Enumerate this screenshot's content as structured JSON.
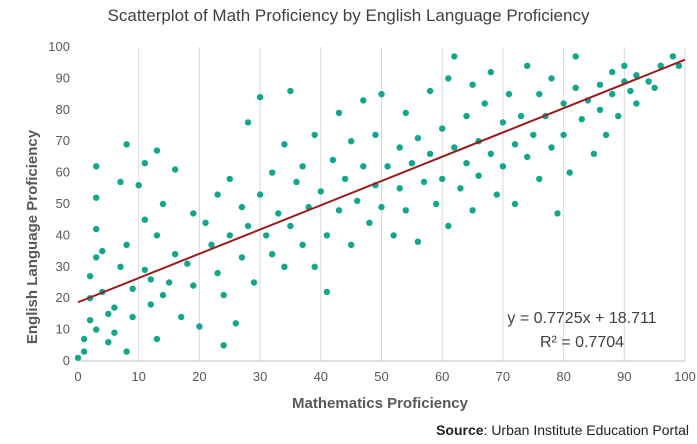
{
  "chart_data": {
    "type": "scatter",
    "title": "Scatterplot of Math  Proficiency by English Language Proficiency",
    "xlabel": "Mathematics Proficiency",
    "ylabel": "English Language Proficiency",
    "xlim": [
      0,
      100
    ],
    "ylim": [
      0,
      100
    ],
    "x_ticks": [
      0,
      10,
      20,
      30,
      40,
      50,
      60,
      70,
      80,
      90,
      100
    ],
    "y_ticks": [
      0,
      10,
      20,
      30,
      40,
      50,
      60,
      70,
      80,
      90,
      100
    ],
    "grid": "vertical",
    "point_color": "#12a78c",
    "trendline": {
      "slope": 0.7725,
      "intercept": 18.711,
      "r_squared": 0.7704,
      "color": "#9b1c1c",
      "equation_label": "y = 0.7725x + 18.711",
      "r2_label": "R² = 0.7704"
    },
    "series": [
      {
        "points": [
          [
            0,
            1
          ],
          [
            1,
            7
          ],
          [
            1,
            3
          ],
          [
            2,
            27
          ],
          [
            2,
            20
          ],
          [
            2,
            13
          ],
          [
            3,
            62
          ],
          [
            3,
            52
          ],
          [
            3,
            42
          ],
          [
            3,
            33
          ],
          [
            3,
            10
          ],
          [
            4,
            35
          ],
          [
            4,
            22
          ],
          [
            5,
            6
          ],
          [
            5,
            15
          ],
          [
            6,
            9
          ],
          [
            6,
            17
          ],
          [
            7,
            30
          ],
          [
            7,
            57
          ],
          [
            8,
            69
          ],
          [
            8,
            37
          ],
          [
            8,
            3
          ],
          [
            9,
            23
          ],
          [
            9,
            14
          ],
          [
            10,
            56
          ],
          [
            11,
            63
          ],
          [
            11,
            45
          ],
          [
            11,
            29
          ],
          [
            12,
            18
          ],
          [
            12,
            26
          ],
          [
            13,
            67
          ],
          [
            13,
            40
          ],
          [
            13,
            7
          ],
          [
            14,
            50
          ],
          [
            14,
            21
          ],
          [
            15,
            25
          ],
          [
            16,
            61
          ],
          [
            16,
            34
          ],
          [
            17,
            14
          ],
          [
            18,
            31
          ],
          [
            19,
            47
          ],
          [
            19,
            24
          ],
          [
            20,
            11
          ],
          [
            21,
            44
          ],
          [
            22,
            37
          ],
          [
            23,
            53
          ],
          [
            23,
            28
          ],
          [
            24,
            21
          ],
          [
            24,
            5
          ],
          [
            25,
            58
          ],
          [
            25,
            40
          ],
          [
            26,
            12
          ],
          [
            27,
            49
          ],
          [
            27,
            33
          ],
          [
            28,
            76
          ],
          [
            28,
            43
          ],
          [
            29,
            25
          ],
          [
            30,
            84
          ],
          [
            30,
            53
          ],
          [
            31,
            40
          ],
          [
            32,
            60
          ],
          [
            32,
            34
          ],
          [
            33,
            47
          ],
          [
            34,
            69
          ],
          [
            34,
            30
          ],
          [
            35,
            86
          ],
          [
            35,
            43
          ],
          [
            36,
            57
          ],
          [
            37,
            37
          ],
          [
            37,
            62
          ],
          [
            38,
            49
          ],
          [
            39,
            72
          ],
          [
            39,
            30
          ],
          [
            40,
            54
          ],
          [
            41,
            40
          ],
          [
            41,
            22
          ],
          [
            42,
            64
          ],
          [
            43,
            48
          ],
          [
            43,
            79
          ],
          [
            44,
            58
          ],
          [
            45,
            37
          ],
          [
            45,
            70
          ],
          [
            46,
            51
          ],
          [
            47,
            83
          ],
          [
            47,
            62
          ],
          [
            48,
            44
          ],
          [
            49,
            56
          ],
          [
            49,
            72
          ],
          [
            50,
            49
          ],
          [
            50,
            85
          ],
          [
            51,
            62
          ],
          [
            52,
            40
          ],
          [
            53,
            68
          ],
          [
            53,
            55
          ],
          [
            54,
            79
          ],
          [
            54,
            48
          ],
          [
            55,
            63
          ],
          [
            56,
            71
          ],
          [
            56,
            38
          ],
          [
            57,
            57
          ],
          [
            58,
            86
          ],
          [
            58,
            66
          ],
          [
            59,
            50
          ],
          [
            60,
            74
          ],
          [
            60,
            58
          ],
          [
            61,
            90
          ],
          [
            61,
            43
          ],
          [
            62,
            68
          ],
          [
            62,
            97
          ],
          [
            63,
            55
          ],
          [
            64,
            78
          ],
          [
            64,
            63
          ],
          [
            65,
            48
          ],
          [
            65,
            88
          ],
          [
            66,
            70
          ],
          [
            66,
            59
          ],
          [
            67,
            82
          ],
          [
            68,
            66
          ],
          [
            68,
            92
          ],
          [
            69,
            53
          ],
          [
            70,
            76
          ],
          [
            70,
            62
          ],
          [
            71,
            85
          ],
          [
            72,
            69
          ],
          [
            72,
            50
          ],
          [
            73,
            78
          ],
          [
            74,
            94
          ],
          [
            74,
            65
          ],
          [
            75,
            72
          ],
          [
            76,
            58
          ],
          [
            76,
            85
          ],
          [
            77,
            78
          ],
          [
            78,
            68
          ],
          [
            78,
            90
          ],
          [
            79,
            47
          ],
          [
            80,
            82
          ],
          [
            80,
            72
          ],
          [
            81,
            60
          ],
          [
            82,
            87
          ],
          [
            82,
            97
          ],
          [
            83,
            77
          ],
          [
            84,
            83
          ],
          [
            85,
            66
          ],
          [
            86,
            88
          ],
          [
            86,
            80
          ],
          [
            87,
            72
          ],
          [
            88,
            92
          ],
          [
            88,
            85
          ],
          [
            89,
            78
          ],
          [
            90,
            89
          ],
          [
            90,
            94
          ],
          [
            91,
            86
          ],
          [
            92,
            91
          ],
          [
            92,
            82
          ],
          [
            94,
            89
          ],
          [
            95,
            87
          ],
          [
            96,
            94
          ],
          [
            98,
            97
          ],
          [
            99,
            94
          ]
        ]
      }
    ]
  },
  "source": {
    "label": "Source",
    "text": ": Urban Institute Education Portal"
  }
}
